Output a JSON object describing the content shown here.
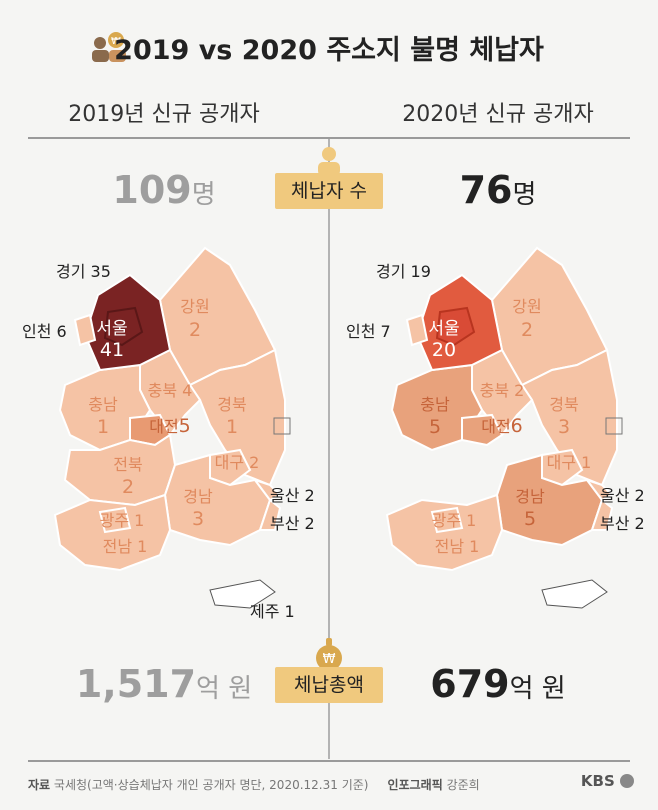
{
  "title": "2019 vs 2020 주소지 불명 체납자",
  "columns": {
    "left": "2019년 신규 공개자",
    "right": "2020년 신규 공개자"
  },
  "metrics": {
    "count_label": "체납자 수",
    "amount_label": "체납총액",
    "count_2019": "109",
    "count_2019_unit": "명",
    "count_2020": "76",
    "count_2020_unit": "명",
    "amount_2019": "1,517",
    "amount_2019_unit": "억 원",
    "amount_2020": "679",
    "amount_2020_unit": "억 원"
  },
  "map_2019": {
    "gyeonggi": "경기 35",
    "incheon": "인천 6",
    "seoul_name": "서울",
    "seoul_val": "41",
    "gangwon_name": "강원",
    "gangwon_val": "2",
    "chungbuk": "충북 4",
    "chungnam_name": "충남",
    "chungnam_val": "1",
    "daejeon_name": "대전",
    "daejeon_val": "5",
    "gyeongbuk_name": "경북",
    "gyeongbuk_val": "1",
    "jeonbuk_name": "전북",
    "jeonbuk_val": "2",
    "daegu": "대구 2",
    "gyeongnam_name": "경남",
    "gyeongnam_val": "3",
    "gwangju": "광주 1",
    "jeonnam": "전남 1",
    "ulsan": "울산 2",
    "busan": "부산 2",
    "jeju": "제주 1"
  },
  "map_2020": {
    "gyeonggi": "경기 19",
    "incheon": "인천 7",
    "seoul_name": "서울",
    "seoul_val": "20",
    "gangwon_name": "강원",
    "gangwon_val": "2",
    "chungbuk": "충북 2",
    "chungnam_name": "충남",
    "chungnam_val": "5",
    "daejeon_name": "대전",
    "daejeon_val": "6",
    "gyeongbuk_name": "경북",
    "gyeongbuk_val": "3",
    "daegu": "대구 1",
    "gyeongnam_name": "경남",
    "gyeongnam_val": "5",
    "gwangju": "광주 1",
    "jeonnam": "전남 1",
    "ulsan": "울산 2",
    "busan": "부산 2"
  },
  "footer": {
    "source_label": "자료",
    "source_text": "국세청(고액·상습체납자 개인 공개자 명단, 2020.12.31 기준)",
    "graphic_label": "인포그래픽",
    "graphic_author": "강준희",
    "brand": "KBS"
  },
  "colors": {
    "light": "#f5c3a5",
    "mid": "#e89a72",
    "seoul_2019": "#7a2323",
    "seoul_2020": "#d94b36",
    "gyeonggi_2020": "#e15b3f",
    "label_box": "#f0c97e"
  }
}
